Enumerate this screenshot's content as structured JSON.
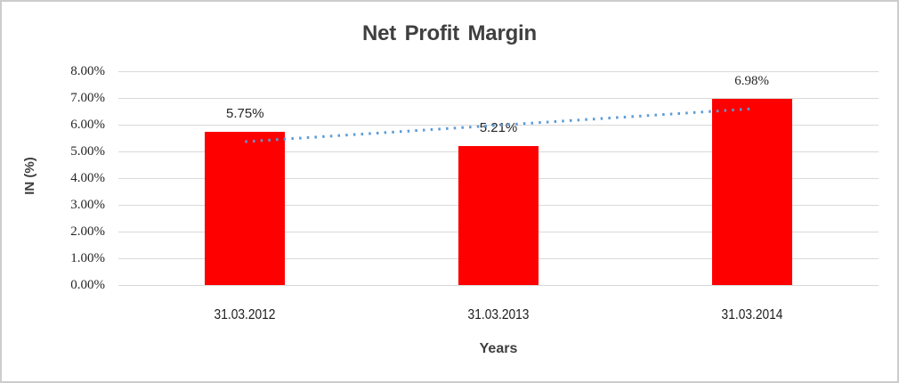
{
  "window": {
    "background": "#ffffff",
    "border_color": "#cccccc"
  },
  "chart_data": {
    "type": "bar",
    "title": "Net Profit Margin",
    "xlabel": "Years",
    "ylabel": "IN (%)",
    "categories": [
      "31.03.2012",
      "31.03.2013",
      "31.03.2014"
    ],
    "series": [
      {
        "name": "Net Profit Margin",
        "values": [
          5.75,
          5.21,
          6.98
        ]
      }
    ],
    "data_labels": [
      "5.75%",
      "5.21%",
      "6.98%"
    ],
    "ylim": [
      0,
      8
    ],
    "ytick_labels_top_to_bottom": [
      "8.00%",
      "7.00%",
      "6.00%",
      "5.00%",
      "4.00%",
      "3.00%",
      "2.00%",
      "1.00%",
      "0.00%"
    ],
    "grid": true,
    "legend": "none",
    "bar_color": "#FF0000",
    "gridline_color": "#d9d9d9",
    "trendline": {
      "type": "linear",
      "style": "dotted",
      "color": "#5B9BD5"
    }
  }
}
